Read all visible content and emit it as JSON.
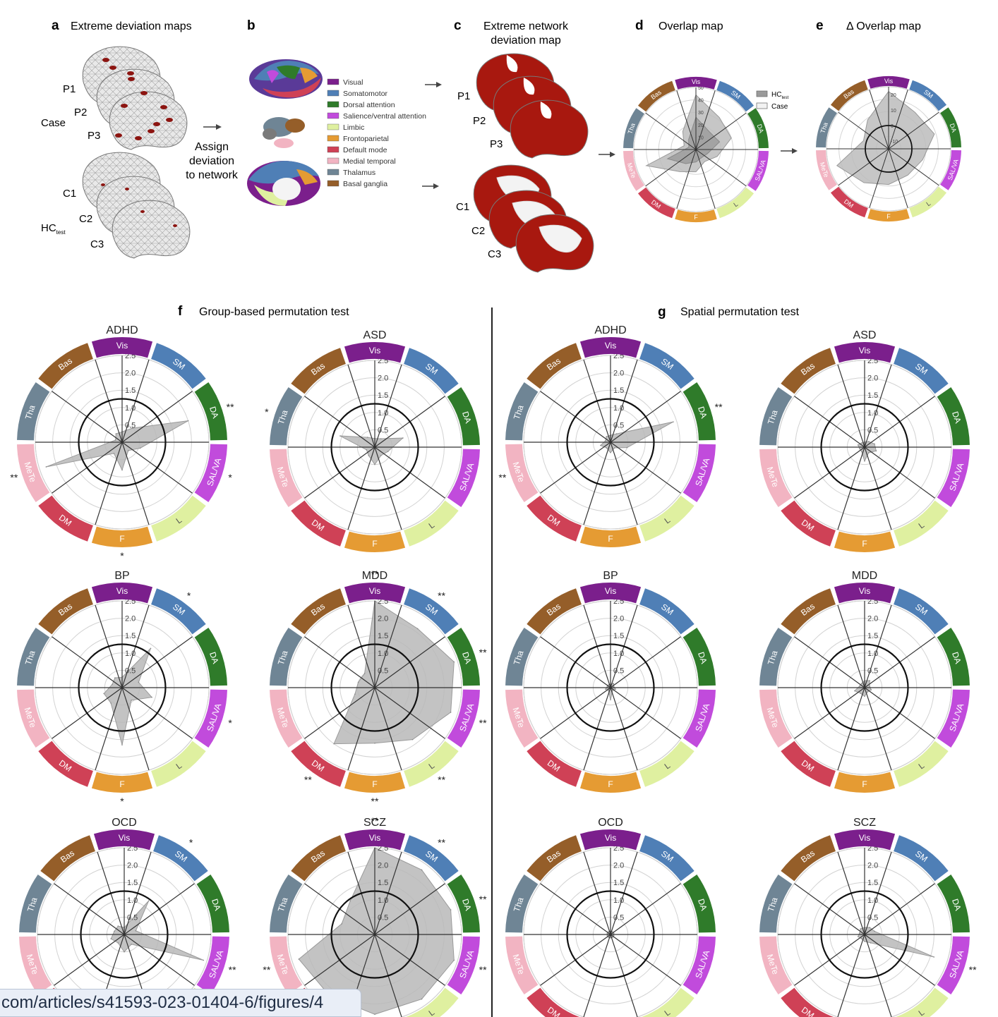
{
  "networks_legend": [
    {
      "label": "Visual",
      "color": "#7b1f8c"
    },
    {
      "label": "Somatomotor",
      "color": "#4f7fb6"
    },
    {
      "label": "Dorsal attention",
      "color": "#2f7b2a"
    },
    {
      "label": "Salience/ventral attention",
      "color": "#c14bdc"
    },
    {
      "label": "Limbic",
      "color": "#dff0a0"
    },
    {
      "label": "Frontoparietal",
      "color": "#e59b33"
    },
    {
      "label": "Default mode",
      "color": "#cf4156"
    },
    {
      "label": "Medial temporal",
      "color": "#f2b4c2"
    },
    {
      "label": "Thalamus",
      "color": "#6f8595"
    },
    {
      "label": "Basal ganglia",
      "color": "#955e29"
    }
  ],
  "ring": [
    {
      "label": "Vis",
      "color": "#7b1f8c"
    },
    {
      "label": "SM",
      "color": "#4f7fb6"
    },
    {
      "label": "DA",
      "color": "#2f7b2a"
    },
    {
      "label": "SAL/VA",
      "color": "#c14bdc"
    },
    {
      "label": "L",
      "color": "#dff0a0"
    },
    {
      "label": "F",
      "color": "#e59b33"
    },
    {
      "label": "DM",
      "color": "#cf4156"
    },
    {
      "label": "MeTe",
      "color": "#f2b4c2"
    },
    {
      "label": "Tha",
      "color": "#6f8595"
    },
    {
      "label": "Bas",
      "color": "#955e29"
    }
  ],
  "top": {
    "a": {
      "letter": "a",
      "title": "Extreme deviation maps",
      "case": "Case",
      "hc": "HC",
      "hc_sub": "test",
      "p": [
        "P1",
        "P2",
        "P3"
      ],
      "c": [
        "C1",
        "C2",
        "C3"
      ]
    },
    "assign": [
      "Assign",
      "deviation",
      "to network"
    ],
    "b": {
      "letter": "b"
    },
    "c": {
      "letter": "c",
      "title1": "Extreme network",
      "title2": "deviation map",
      "p": [
        "P1",
        "P2",
        "P3"
      ],
      "c": [
        "C1",
        "C2",
        "C3"
      ]
    },
    "d": {
      "letter": "d",
      "title": "Overlap map",
      "legend_hc": "HC",
      "legend_hc_sub": "test",
      "legend_case": "Case",
      "ticks": [
        "50",
        "40",
        "30",
        "20",
        "10"
      ]
    },
    "e": {
      "letter": "e",
      "title": "Δ Overlap map",
      "ticks": [
        "20",
        "10",
        "0",
        "-10"
      ]
    }
  },
  "panel_f": {
    "letter": "f",
    "title": "Group-based permutation test"
  },
  "panel_g": {
    "letter": "g",
    "title": "Spatial permutation test"
  },
  "radial_ticks": [
    "2.5",
    "2.0",
    "1.5",
    "1.0",
    "0.5"
  ],
  "chart_data": [
    {
      "type": "radar",
      "panel": "f",
      "title": "ADHD",
      "axes": [
        "Vis",
        "SM",
        "DA",
        "SAL/VA",
        "L",
        "F",
        "DM",
        "MeTe",
        "Tha",
        "Bas"
      ],
      "rlim": [
        0,
        2.5
      ],
      "values": [
        0.3,
        0.5,
        2.0,
        0.55,
        0.3,
        0.8,
        0.4,
        2.3,
        0.2,
        0.3
      ],
      "significance": [
        "",
        "",
        "**",
        "*",
        "",
        "*",
        "",
        "**",
        "",
        ""
      ]
    },
    {
      "type": "radar",
      "panel": "f",
      "title": "ASD",
      "axes": [
        "Vis",
        "SM",
        "DA",
        "SAL/VA",
        "L",
        "F",
        "DM",
        "MeTe",
        "Tha",
        "Bas"
      ],
      "rlim": [
        0,
        2.5
      ],
      "values": [
        0.25,
        0.3,
        0.85,
        0.4,
        0.3,
        0.5,
        0.3,
        0.25,
        1.05,
        0.35
      ],
      "significance": [
        "",
        "",
        "",
        "",
        "",
        "",
        "",
        "",
        "*",
        ""
      ]
    },
    {
      "type": "radar",
      "panel": "f",
      "title": "BP",
      "axes": [
        "Vis",
        "SM",
        "DA",
        "SAL/VA",
        "L",
        "F",
        "DM",
        "MeTe",
        "Tha",
        "Bas"
      ],
      "rlim": [
        0,
        2.5
      ],
      "values": [
        0.3,
        1.4,
        0.5,
        0.9,
        0.45,
        1.65,
        0.55,
        0.55,
        0.3,
        0.35
      ],
      "significance": [
        "",
        "*",
        "",
        "*",
        "",
        "*",
        "",
        "",
        "",
        ""
      ]
    },
    {
      "type": "radar",
      "panel": "f",
      "title": "MDD",
      "axes": [
        "Vis",
        "SM",
        "DA",
        "SAL/VA",
        "L",
        "F",
        "DM",
        "MeTe",
        "Tha",
        "Bas"
      ],
      "rlim": [
        0,
        2.5
      ],
      "values": [
        2.5,
        2.1,
        2.4,
        2.3,
        1.85,
        1.6,
        2.0,
        0.6,
        0.5,
        0.5
      ],
      "significance": [
        "**",
        "**",
        "**",
        "**",
        "**",
        "**",
        "**",
        "",
        "",
        ""
      ]
    },
    {
      "type": "radar",
      "panel": "f",
      "title": "OCD",
      "axes": [
        "Vis",
        "SM",
        "DA",
        "SAL/VA",
        "L",
        "F",
        "DM",
        "MeTe",
        "Tha",
        "Bas"
      ],
      "rlim": [
        0,
        2.5
      ],
      "values": [
        0.2,
        1.2,
        0.35,
        2.4,
        0.35,
        0.5,
        0.3,
        0.4,
        0.3,
        0.3
      ],
      "significance": [
        "",
        "*",
        "",
        "**",
        "",
        "",
        "",
        "",
        "",
        ""
      ]
    },
    {
      "type": "radar",
      "panel": "f",
      "title": "SCZ",
      "axes": [
        "Vis",
        "SM",
        "DA",
        "SAL/VA",
        "L",
        "F",
        "DM",
        "MeTe",
        "Tha",
        "Bas"
      ],
      "rlim": [
        0,
        2.5
      ],
      "values": [
        2.5,
        2.3,
        2.3,
        2.4,
        2.3,
        2.3,
        2.2,
        2.3,
        1.0,
        1.2
      ],
      "significance": [
        "**",
        "**",
        "**",
        "**",
        "",
        "",
        "",
        "**",
        "",
        ""
      ]
    },
    {
      "type": "radar",
      "panel": "g",
      "title": "ADHD",
      "axes": [
        "Vis",
        "SM",
        "DA",
        "SAL/VA",
        "L",
        "F",
        "DM",
        "MeTe",
        "Tha",
        "Bas"
      ],
      "rlim": [
        0,
        2.5
      ],
      "values": [
        0.2,
        0.3,
        1.9,
        0.5,
        0.2,
        0.3,
        0.2,
        0.3,
        0.15,
        0.2
      ],
      "significance": [
        "",
        "",
        "**",
        "",
        "",
        "",
        "",
        "**",
        "",
        ""
      ]
    },
    {
      "type": "radar",
      "panel": "g",
      "title": "ASD",
      "axes": [
        "Vis",
        "SM",
        "DA",
        "SAL/VA",
        "L",
        "F",
        "DM",
        "MeTe",
        "Tha",
        "Bas"
      ],
      "rlim": [
        0,
        2.5
      ],
      "values": [
        0.15,
        0.2,
        0.3,
        0.35,
        0.2,
        0.4,
        0.15,
        0.15,
        0.2,
        0.15
      ],
      "significance": [
        "",
        "",
        "",
        "",
        "",
        "",
        "",
        "",
        "",
        ""
      ]
    },
    {
      "type": "radar",
      "panel": "g",
      "title": "BP",
      "axes": [
        "Vis",
        "SM",
        "DA",
        "SAL/VA",
        "L",
        "F",
        "DM",
        "MeTe",
        "Tha",
        "Bas"
      ],
      "rlim": [
        0,
        2.5
      ],
      "values": [
        0.1,
        0.15,
        0.1,
        0.15,
        0.1,
        0.35,
        0.1,
        0.15,
        0.1,
        0.1
      ],
      "significance": [
        "",
        "",
        "",
        "",
        "",
        "",
        "",
        "",
        "",
        ""
      ]
    },
    {
      "type": "radar",
      "panel": "g",
      "title": "MDD",
      "axes": [
        "Vis",
        "SM",
        "DA",
        "SAL/VA",
        "L",
        "F",
        "DM",
        "MeTe",
        "Tha",
        "Bas"
      ],
      "rlim": [
        0,
        2.5
      ],
      "values": [
        0.2,
        0.25,
        0.15,
        0.2,
        0.15,
        0.25,
        0.2,
        0.3,
        0.15,
        0.15
      ],
      "significance": [
        "",
        "",
        "",
        "",
        "",
        "",
        "",
        "",
        "",
        ""
      ]
    },
    {
      "type": "radar",
      "panel": "g",
      "title": "OCD",
      "axes": [
        "Vis",
        "SM",
        "DA",
        "SAL/VA",
        "L",
        "F",
        "DM",
        "MeTe",
        "Tha",
        "Bas"
      ],
      "rlim": [
        0,
        2.5
      ],
      "values": [
        0.1,
        0.1,
        0.1,
        0.1,
        0.1,
        0.1,
        0.1,
        0.1,
        0.1,
        0.1
      ],
      "significance": [
        "",
        "",
        "",
        "",
        "",
        "",
        "",
        "",
        "",
        ""
      ]
    },
    {
      "type": "radar",
      "panel": "g",
      "title": "SCZ",
      "axes": [
        "Vis",
        "SM",
        "DA",
        "SAL/VA",
        "L",
        "F",
        "DM",
        "MeTe",
        "Tha",
        "Bas"
      ],
      "rlim": [
        0,
        2.5
      ],
      "values": [
        0.2,
        0.25,
        0.3,
        2.1,
        0.3,
        0.2,
        0.15,
        0.2,
        0.15,
        0.2
      ],
      "significance": [
        "",
        "",
        "",
        "**",
        "",
        "",
        "",
        "",
        "",
        ""
      ]
    }
  ],
  "overlap_charts": [
    {
      "panel": "d",
      "max": 50,
      "values": [
        44,
        32,
        30,
        18,
        12,
        18,
        22,
        42,
        10,
        18
      ],
      "values2": [
        26,
        18,
        20,
        10,
        8,
        10,
        14,
        24,
        6,
        10
      ]
    },
    {
      "panel": "e",
      "max": 25,
      "min": -15,
      "values": [
        22,
        14,
        16,
        8,
        6,
        8,
        12,
        20,
        2,
        8
      ]
    }
  ],
  "url": "com/articles/s41593-023-01404-6/figures/4"
}
